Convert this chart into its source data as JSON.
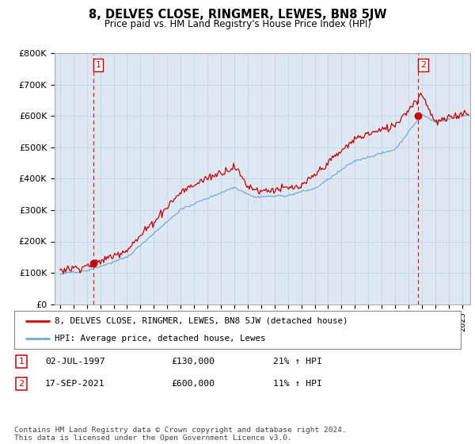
{
  "title": "8, DELVES CLOSE, RINGMER, LEWES, BN8 5JW",
  "subtitle": "Price paid vs. HM Land Registry's House Price Index (HPI)",
  "ylabel_ticks": [
    "£0",
    "£100K",
    "£200K",
    "£300K",
    "£400K",
    "£500K",
    "£600K",
    "£700K",
    "£800K"
  ],
  "ylim": [
    0,
    800000
  ],
  "xlim_start": 1994.6,
  "xlim_end": 2025.6,
  "purchase1": {
    "date_num": 1997.5,
    "price": 130000,
    "label": "1",
    "pct": "21%",
    "date_str": "02-JUL-1997"
  },
  "purchase2": {
    "date_num": 2021.72,
    "price": 600000,
    "label": "2",
    "pct": "11%",
    "date_str": "17-SEP-2021"
  },
  "line1_color": "#cc0000",
  "line2_color": "#7aaad0",
  "grid_color": "#c8d8e8",
  "bg_color": "#dde8f3",
  "legend_label1": "8, DELVES CLOSE, RINGMER, LEWES, BN8 5JW (detached house)",
  "legend_label2": "HPI: Average price, detached house, Lewes",
  "footnote": "Contains HM Land Registry data © Crown copyright and database right 2024.\nThis data is licensed under the Open Government Licence v3.0.",
  "table_rows": [
    [
      "1",
      "02-JUL-1997",
      "£130,000",
      "21% ↑ HPI"
    ],
    [
      "2",
      "17-SEP-2021",
      "£600,000",
      "11% ↑ HPI"
    ]
  ]
}
